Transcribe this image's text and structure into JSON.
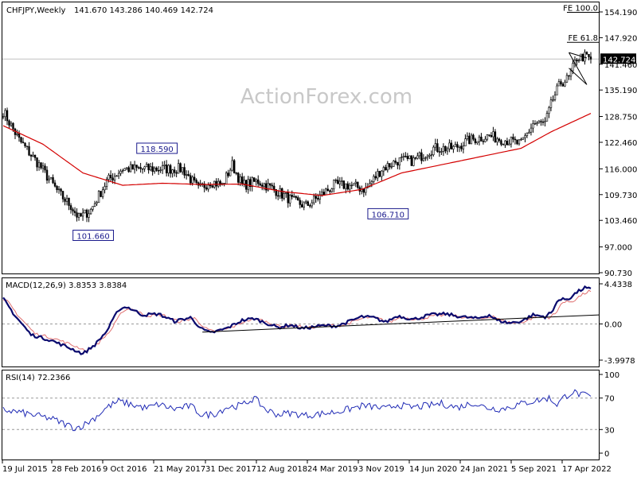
{
  "header": {
    "symbol": "CHFJPY,Weekly",
    "ohlc": "141.670 143.286 140.469 142.724"
  },
  "watermark": "ActionForex.com",
  "chart_data": [
    {
      "type": "candlestick",
      "name": "price",
      "title": "CHFJPY,Weekly",
      "y_ticks": [
        "154.190",
        "147.920",
        "141.460",
        "135.190",
        "128.750",
        "122.460",
        "116.000",
        "109.730",
        "103.460",
        "97.000",
        "90.730"
      ],
      "ylim": [
        90.73,
        154.19
      ],
      "last_price": "142.724",
      "x_ticks": [
        "19 Jul 2015",
        "28 Feb 2016",
        "9 Oct 2016",
        "21 May 2017",
        "31 Dec 2017",
        "12 Aug 2018",
        "24 Mar 2019",
        "3 Nov 2019",
        "14 Jun 2020",
        "24 Jan 2021",
        "5 Sep 2021",
        "17 Apr 2022"
      ],
      "annotations": [
        {
          "text": "101.660",
          "value": 101.66
        },
        {
          "text": "118.590",
          "value": 118.59
        },
        {
          "text": "106.710",
          "value": 106.71
        }
      ],
      "fib_levels": [
        {
          "text": "FE 100.0",
          "value": 154.1
        },
        {
          "text": "FE 61.8",
          "value": 146.8
        }
      ],
      "close_anchors": [
        [
          0,
          130
        ],
        [
          8,
          123
        ],
        [
          18,
          117
        ],
        [
          28,
          110
        ],
        [
          34,
          107
        ],
        [
          38,
          104
        ],
        [
          44,
          106
        ],
        [
          52,
          113
        ],
        [
          60,
          116
        ],
        [
          70,
          116
        ],
        [
          80,
          116
        ],
        [
          90,
          116
        ],
        [
          98,
          111
        ],
        [
          104,
          113
        ],
        [
          110,
          112
        ],
        [
          115,
          117
        ],
        [
          120,
          112
        ],
        [
          128,
          113
        ],
        [
          136,
          111
        ],
        [
          146,
          108
        ],
        [
          152,
          107
        ],
        [
          158,
          109
        ],
        [
          166,
          112
        ],
        [
          174,
          112
        ],
        [
          182,
          111
        ],
        [
          190,
          116
        ],
        [
          198,
          118
        ],
        [
          206,
          118
        ],
        [
          216,
          121
        ],
        [
          226,
          121
        ],
        [
          234,
          123
        ],
        [
          244,
          124
        ],
        [
          252,
          123
        ],
        [
          260,
          122
        ],
        [
          266,
          127
        ],
        [
          272,
          127
        ],
        [
          276,
          133
        ],
        [
          280,
          137
        ],
        [
          284,
          138
        ],
        [
          288,
          143
        ],
        [
          292,
          143.3
        ],
        [
          295,
          142.7
        ]
      ],
      "ma_anchors": [
        [
          0,
          126.5
        ],
        [
          20,
          122
        ],
        [
          40,
          115
        ],
        [
          60,
          112
        ],
        [
          80,
          112.5
        ],
        [
          100,
          112.2
        ],
        [
          120,
          112.3
        ],
        [
          140,
          110.5
        ],
        [
          160,
          109.5
        ],
        [
          180,
          111
        ],
        [
          200,
          115
        ],
        [
          220,
          117
        ],
        [
          240,
          119
        ],
        [
          260,
          121
        ],
        [
          275,
          125
        ],
        [
          295,
          129.5
        ]
      ]
    },
    {
      "type": "line",
      "name": "macd",
      "title": "MACD(12,26,9) 3.8353 3.8384",
      "y_ticks": [
        "4.4338",
        "0.00",
        "-3.9978"
      ],
      "ylim": [
        -3.9978,
        4.4338
      ],
      "anchors": [
        [
          0,
          2.8
        ],
        [
          6,
          0.9
        ],
        [
          14,
          -1.2
        ],
        [
          24,
          -1.8
        ],
        [
          36,
          -2.9
        ],
        [
          40,
          -3.3
        ],
        [
          46,
          -2.3
        ],
        [
          52,
          -0.8
        ],
        [
          58,
          1.6
        ],
        [
          62,
          1.9
        ],
        [
          70,
          1.0
        ],
        [
          78,
          1.1
        ],
        [
          86,
          0.3
        ],
        [
          94,
          0.7
        ],
        [
          100,
          -0.6
        ],
        [
          104,
          -1.0
        ],
        [
          112,
          -0.5
        ],
        [
          120,
          0.4
        ],
        [
          126,
          0.6
        ],
        [
          132,
          0.1
        ],
        [
          138,
          -0.4
        ],
        [
          144,
          -0.1
        ],
        [
          150,
          -0.5
        ],
        [
          160,
          -0.2
        ],
        [
          168,
          -0.2
        ],
        [
          174,
          0.3
        ],
        [
          180,
          0.8
        ],
        [
          186,
          0.7
        ],
        [
          192,
          0.2
        ],
        [
          198,
          0.9
        ],
        [
          206,
          0.5
        ],
        [
          214,
          1.0
        ],
        [
          222,
          1.1
        ],
        [
          230,
          0.8
        ],
        [
          238,
          0.6
        ],
        [
          244,
          1.0
        ],
        [
          248,
          0.4
        ],
        [
          254,
          0.1
        ],
        [
          260,
          0.3
        ],
        [
          266,
          1.0
        ],
        [
          272,
          0.8
        ],
        [
          276,
          1.4
        ],
        [
          278,
          2.6
        ],
        [
          284,
          2.8
        ],
        [
          288,
          3.5
        ],
        [
          292,
          4.0
        ],
        [
          295,
          3.8
        ]
      ],
      "signal_lag": 2,
      "trendline": {
        "from": [
          -0.9,
          0.37
        ],
        "to": [
          1.0,
          0.98
        ]
      }
    },
    {
      "type": "line",
      "name": "rsi",
      "title": "RSI(14) 72.2366",
      "y_ticks": [
        "100",
        "70",
        "30",
        "0"
      ],
      "ylim": [
        0,
        100
      ],
      "levels": [
        70,
        30
      ],
      "anchors": [
        [
          0,
          55
        ],
        [
          8,
          52
        ],
        [
          16,
          48
        ],
        [
          24,
          44
        ],
        [
          30,
          38
        ],
        [
          36,
          32
        ],
        [
          40,
          35
        ],
        [
          46,
          45
        ],
        [
          52,
          58
        ],
        [
          58,
          66
        ],
        [
          64,
          62
        ],
        [
          72,
          57
        ],
        [
          78,
          62
        ],
        [
          86,
          56
        ],
        [
          94,
          60
        ],
        [
          100,
          48
        ],
        [
          106,
          50
        ],
        [
          112,
          58
        ],
        [
          120,
          61
        ],
        [
          126,
          70
        ],
        [
          132,
          55
        ],
        [
          138,
          49
        ],
        [
          144,
          51
        ],
        [
          152,
          48
        ],
        [
          160,
          50
        ],
        [
          166,
          52
        ],
        [
          172,
          55
        ],
        [
          180,
          60
        ],
        [
          186,
          59
        ],
        [
          192,
          56
        ],
        [
          198,
          62
        ],
        [
          204,
          58
        ],
        [
          212,
          60
        ],
        [
          220,
          63
        ],
        [
          228,
          58
        ],
        [
          236,
          64
        ],
        [
          242,
          58
        ],
        [
          250,
          56
        ],
        [
          256,
          60
        ],
        [
          264,
          65
        ],
        [
          268,
          67
        ],
        [
          274,
          70
        ],
        [
          278,
          62
        ],
        [
          282,
          72
        ],
        [
          286,
          78
        ],
        [
          290,
          74
        ],
        [
          295,
          72.2
        ]
      ]
    }
  ]
}
